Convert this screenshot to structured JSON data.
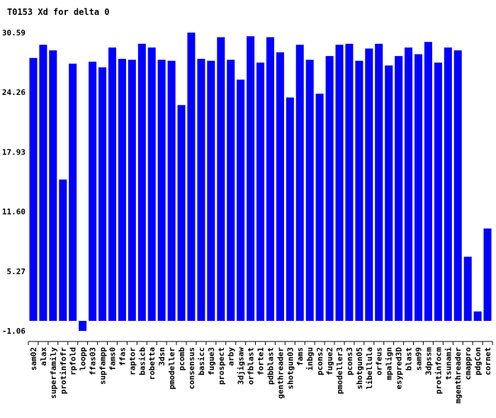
{
  "chart_data": {
    "type": "bar",
    "title": "T0153 Xd for delta 0",
    "xlabel": "",
    "ylabel": "",
    "ylim": [
      -1.06,
      30.59
    ],
    "yticks": [
      "30.59",
      "24.26",
      "17.93",
      "11.60",
      "5.27",
      "-1.06"
    ],
    "bar_color": "#0000ff",
    "grid": false,
    "categories": [
      "sam02",
      "alax",
      "superfamily",
      "protinfofr",
      "rpfold",
      "loopp",
      "ffas03",
      "supfampp",
      "fams0",
      "ffas",
      "raptor",
      "basicb",
      "robetta",
      "3dsn",
      "pmodeller",
      "pcomb",
      "consensus",
      "basicc",
      "fugue3",
      "prospect",
      "arby",
      "3djigsaw",
      "orfblast",
      "forte1",
      "pdbblast",
      "genthreader",
      "shotgun03",
      "fams",
      "inbgu",
      "pcons2",
      "fugue2",
      "pmodeller3",
      "pcons3",
      "shotgun05",
      "libellula",
      "orfeus",
      "mpalign",
      "esypred3D",
      "blast",
      "sam99",
      "3dpssm",
      "protinfocm",
      "tsunami",
      "mgenthreader",
      "cmappro",
      "pdgCon",
      "cornet"
    ],
    "values": [
      27.9,
      29.3,
      28.7,
      15.0,
      27.3,
      -1.06,
      27.5,
      26.9,
      29.0,
      27.8,
      27.7,
      29.4,
      29.0,
      27.7,
      27.6,
      22.9,
      30.59,
      27.8,
      27.6,
      30.1,
      27.7,
      25.6,
      30.2,
      27.4,
      30.1,
      28.5,
      23.7,
      29.3,
      27.7,
      24.1,
      28.1,
      29.3,
      29.4,
      27.6,
      28.9,
      29.4,
      27.1,
      28.1,
      29.0,
      28.3,
      29.6,
      27.4,
      29.0,
      28.7,
      6.8,
      1.0,
      9.8
    ]
  }
}
